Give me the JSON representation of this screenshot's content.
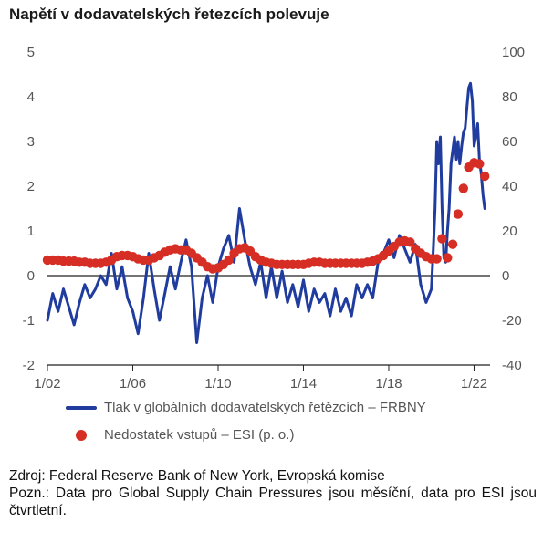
{
  "chart_data": {
    "type": "line",
    "title": "Napětí v dodavatelských řetezcích polevuje",
    "x_ticks": [
      "1/02",
      "1/06",
      "1/10",
      "1/14",
      "1/18",
      "1/22"
    ],
    "x_range": [
      2002.0,
      2022.75
    ],
    "y_left": {
      "range": [
        -2,
        5
      ],
      "ticks": [
        "-2",
        "-1",
        "0",
        "1",
        "2",
        "3",
        "4",
        "5"
      ]
    },
    "y_right": {
      "range": [
        -40,
        100
      ],
      "ticks": [
        "-40",
        "-20",
        "0",
        "20",
        "40",
        "60",
        "80",
        "100"
      ]
    },
    "series": [
      {
        "name": "Tlak v globálních dodavatelských řetězcích – FRBNY",
        "axis": "left",
        "style": "line",
        "color": "#1f3c9e",
        "points": [
          [
            2002.0,
            -1.0
          ],
          [
            2002.25,
            -0.4
          ],
          [
            2002.5,
            -0.8
          ],
          [
            2002.75,
            -0.3
          ],
          [
            2003.0,
            -0.7
          ],
          [
            2003.25,
            -1.1
          ],
          [
            2003.5,
            -0.6
          ],
          [
            2003.75,
            -0.2
          ],
          [
            2004.0,
            -0.5
          ],
          [
            2004.25,
            -0.3
          ],
          [
            2004.5,
            0.0
          ],
          [
            2004.75,
            -0.2
          ],
          [
            2005.0,
            0.5
          ],
          [
            2005.25,
            -0.3
          ],
          [
            2005.5,
            0.2
          ],
          [
            2005.75,
            -0.5
          ],
          [
            2006.0,
            -0.8
          ],
          [
            2006.25,
            -1.3
          ],
          [
            2006.5,
            -0.5
          ],
          [
            2006.75,
            0.5
          ],
          [
            2007.0,
            -0.3
          ],
          [
            2007.25,
            -1.0
          ],
          [
            2007.5,
            -0.4
          ],
          [
            2007.75,
            0.2
          ],
          [
            2008.0,
            -0.3
          ],
          [
            2008.25,
            0.3
          ],
          [
            2008.5,
            0.8
          ],
          [
            2008.75,
            0.2
          ],
          [
            2009.0,
            -1.5
          ],
          [
            2009.25,
            -0.5
          ],
          [
            2009.5,
            0.0
          ],
          [
            2009.75,
            -0.6
          ],
          [
            2010.0,
            0.2
          ],
          [
            2010.25,
            0.6
          ],
          [
            2010.5,
            0.9
          ],
          [
            2010.75,
            0.3
          ],
          [
            2011.0,
            1.5
          ],
          [
            2011.25,
            0.8
          ],
          [
            2011.5,
            0.2
          ],
          [
            2011.75,
            -0.2
          ],
          [
            2012.0,
            0.3
          ],
          [
            2012.25,
            -0.5
          ],
          [
            2012.5,
            0.2
          ],
          [
            2012.75,
            -0.5
          ],
          [
            2013.0,
            0.1
          ],
          [
            2013.25,
            -0.6
          ],
          [
            2013.5,
            -0.2
          ],
          [
            2013.75,
            -0.7
          ],
          [
            2014.0,
            -0.1
          ],
          [
            2014.25,
            -0.8
          ],
          [
            2014.5,
            -0.3
          ],
          [
            2014.75,
            -0.6
          ],
          [
            2015.0,
            -0.4
          ],
          [
            2015.25,
            -0.9
          ],
          [
            2015.5,
            -0.3
          ],
          [
            2015.75,
            -0.8
          ],
          [
            2016.0,
            -0.5
          ],
          [
            2016.25,
            -0.9
          ],
          [
            2016.5,
            -0.2
          ],
          [
            2016.75,
            -0.5
          ],
          [
            2017.0,
            -0.2
          ],
          [
            2017.25,
            -0.5
          ],
          [
            2017.5,
            0.3
          ],
          [
            2017.75,
            0.5
          ],
          [
            2018.0,
            0.8
          ],
          [
            2018.25,
            0.4
          ],
          [
            2018.5,
            0.9
          ],
          [
            2018.75,
            0.6
          ],
          [
            2019.0,
            0.3
          ],
          [
            2019.25,
            0.7
          ],
          [
            2019.5,
            -0.2
          ],
          [
            2019.75,
            -0.6
          ],
          [
            2020.0,
            -0.3
          ],
          [
            2020.08,
            0.5
          ],
          [
            2020.17,
            1.5
          ],
          [
            2020.25,
            3.0
          ],
          [
            2020.33,
            2.5
          ],
          [
            2020.42,
            3.1
          ],
          [
            2020.5,
            1.5
          ],
          [
            2020.58,
            0.4
          ],
          [
            2020.67,
            0.3
          ],
          [
            2020.75,
            1.0
          ],
          [
            2020.83,
            1.5
          ],
          [
            2020.92,
            2.5
          ],
          [
            2021.0,
            2.8
          ],
          [
            2021.08,
            3.1
          ],
          [
            2021.17,
            2.6
          ],
          [
            2021.25,
            3.0
          ],
          [
            2021.33,
            2.5
          ],
          [
            2021.42,
            2.9
          ],
          [
            2021.5,
            3.2
          ],
          [
            2021.58,
            3.3
          ],
          [
            2021.67,
            3.8
          ],
          [
            2021.75,
            4.2
          ],
          [
            2021.83,
            4.3
          ],
          [
            2021.92,
            3.9
          ],
          [
            2022.0,
            2.9
          ],
          [
            2022.08,
            3.1
          ],
          [
            2022.17,
            3.4
          ],
          [
            2022.25,
            2.6
          ],
          [
            2022.33,
            2.3
          ],
          [
            2022.42,
            1.8
          ],
          [
            2022.5,
            1.5
          ]
        ]
      },
      {
        "name": "Nedostatek vstupů – ESI (p. o.)",
        "axis": "right",
        "style": "dots",
        "color": "#d62e24",
        "points": [
          [
            2002.0,
            7
          ],
          [
            2002.25,
            7
          ],
          [
            2002.5,
            7
          ],
          [
            2002.75,
            6.5
          ],
          [
            2003.0,
            6.5
          ],
          [
            2003.25,
            6.5
          ],
          [
            2003.5,
            6
          ],
          [
            2003.75,
            6
          ],
          [
            2004.0,
            5.5
          ],
          [
            2004.25,
            5.5
          ],
          [
            2004.5,
            5.5
          ],
          [
            2004.75,
            6
          ],
          [
            2005.0,
            7
          ],
          [
            2005.25,
            8.5
          ],
          [
            2005.5,
            9
          ],
          [
            2005.75,
            9
          ],
          [
            2006.0,
            8.5
          ],
          [
            2006.25,
            7.5
          ],
          [
            2006.5,
            7
          ],
          [
            2006.75,
            7
          ],
          [
            2007.0,
            8
          ],
          [
            2007.25,
            9
          ],
          [
            2007.5,
            10.5
          ],
          [
            2007.75,
            11.5
          ],
          [
            2008.0,
            12
          ],
          [
            2008.25,
            11.5
          ],
          [
            2008.5,
            11.5
          ],
          [
            2008.75,
            10
          ],
          [
            2009.0,
            8
          ],
          [
            2009.25,
            6
          ],
          [
            2009.5,
            4
          ],
          [
            2009.75,
            3
          ],
          [
            2010.0,
            3.5
          ],
          [
            2010.25,
            5
          ],
          [
            2010.5,
            7
          ],
          [
            2010.75,
            10
          ],
          [
            2011.0,
            12
          ],
          [
            2011.25,
            12.5
          ],
          [
            2011.5,
            11
          ],
          [
            2011.75,
            8.5
          ],
          [
            2012.0,
            7
          ],
          [
            2012.25,
            6
          ],
          [
            2012.5,
            5.5
          ],
          [
            2012.75,
            5
          ],
          [
            2013.0,
            5
          ],
          [
            2013.25,
            5
          ],
          [
            2013.5,
            5
          ],
          [
            2013.75,
            5
          ],
          [
            2014.0,
            5
          ],
          [
            2014.25,
            5.5
          ],
          [
            2014.5,
            6
          ],
          [
            2014.75,
            6
          ],
          [
            2015.0,
            5.5
          ],
          [
            2015.25,
            5.5
          ],
          [
            2015.5,
            5.5
          ],
          [
            2015.75,
            5.5
          ],
          [
            2016.0,
            5.5
          ],
          [
            2016.25,
            5.5
          ],
          [
            2016.5,
            5.5
          ],
          [
            2016.75,
            5.5
          ],
          [
            2017.0,
            6
          ],
          [
            2017.25,
            6.5
          ],
          [
            2017.5,
            7.5
          ],
          [
            2017.75,
            9
          ],
          [
            2018.0,
            11
          ],
          [
            2018.25,
            13
          ],
          [
            2018.5,
            15
          ],
          [
            2018.75,
            15.5
          ],
          [
            2019.0,
            15
          ],
          [
            2019.25,
            12
          ],
          [
            2019.5,
            10
          ],
          [
            2019.75,
            8.5
          ],
          [
            2020.0,
            7.5
          ],
          [
            2020.25,
            7.5
          ],
          [
            2020.5,
            16.5
          ],
          [
            2020.75,
            8
          ],
          [
            2021.0,
            14
          ],
          [
            2021.25,
            27.5
          ],
          [
            2021.5,
            39
          ],
          [
            2021.75,
            48.5
          ],
          [
            2022.0,
            50.5
          ],
          [
            2022.25,
            50
          ],
          [
            2022.5,
            44.5
          ]
        ]
      }
    ],
    "grid": false,
    "zero_line": true,
    "legend_placement": "bottom"
  },
  "notes": {
    "source": "Zdroj: Federal Reserve Bank of New York, Evropská komise",
    "note": "Pozn.: Data pro Global Supply Chain Pressures jsou měsíční, data pro ESI jsou čtvrtletní."
  }
}
